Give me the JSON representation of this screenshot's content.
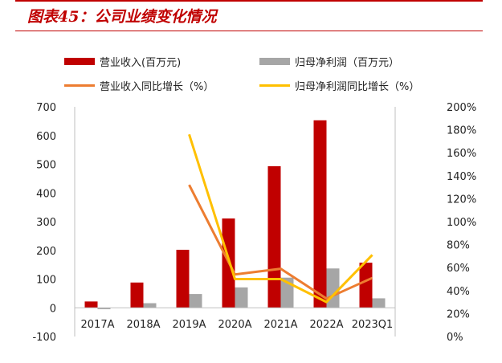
{
  "title": "图表45：公司业绩变化情况",
  "chart_data": {
    "type": "bar+line",
    "categories": [
      "2017A",
      "2018A",
      "2019A",
      "2020A",
      "2021A",
      "2022A",
      "2023Q1"
    ],
    "bars": [
      {
        "name": "营业收入(百万元)",
        "color": "#c00000",
        "values": [
          22,
          88,
          202,
          311,
          493,
          653,
          157
        ]
      },
      {
        "name": "归母净利润（百万元）",
        "color": "#a6a6a6",
        "values": [
          -5,
          16,
          48,
          71,
          105,
          137,
          33
        ]
      }
    ],
    "lines": [
      {
        "name": "营业收入同比增长（%）",
        "color": "#ed7d31",
        "values": [
          null,
          null,
          132,
          54,
          59,
          33,
          51
        ]
      },
      {
        "name": "归母净利润同比增长（%）",
        "color": "#ffc000",
        "values": [
          null,
          null,
          176,
          50,
          50,
          30,
          71
        ]
      }
    ],
    "ylim": [
      -100,
      700
    ],
    "yticks": [
      "700",
      "600",
      "500",
      "400",
      "300",
      "200",
      "100",
      "0",
      "-100"
    ],
    "y2lim": [
      0,
      200
    ],
    "y2ticks": [
      "200%",
      "180%",
      "160%",
      "140%",
      "120%",
      "100%",
      "80%",
      "60%",
      "40%",
      "20%",
      "0%"
    ],
    "legend": "top"
  }
}
